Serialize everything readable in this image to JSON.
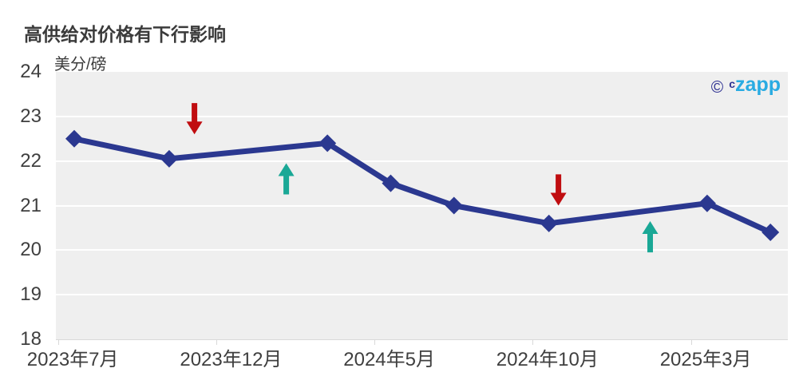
{
  "watermark": {
    "copyright_symbol": "©",
    "prefix": "c",
    "brand": "zapp"
  },
  "colors": {
    "line": "#2B3890",
    "marker": "#2B3890",
    "arrow_down": "#C00D10",
    "arrow_up": "#1AA896",
    "plot_bg": "#EFEFEF",
    "gridline": "#FFFFFF",
    "axis_text": "#3F3F3F",
    "axis_line": "#D9D9D9",
    "title_text": "#3B3B3B",
    "logo_navy": "#2E3192",
    "logo_blue": "#29ABE2"
  },
  "chart_data": {
    "type": "line",
    "title": "高供给对价格有下行影响",
    "ylabel": "美分/磅",
    "ylim": [
      18,
      24
    ],
    "y_ticks": [
      24,
      23,
      22,
      21,
      20,
      19,
      18
    ],
    "grid": "horizontal-white-on-gray",
    "legend": "none",
    "x_month_base": "2023-01",
    "x_domain_months": [
      5.92,
      29.05
    ],
    "x_ticks": [
      {
        "label": "2023年7月",
        "month": 6
      },
      {
        "label": "2023年12月",
        "month": 11
      },
      {
        "label": "2024年5月",
        "month": 16
      },
      {
        "label": "2024年10月",
        "month": 21
      },
      {
        "label": "2025年3月",
        "month": 26
      }
    ],
    "series": [
      {
        "color": "#2B3890",
        "marker": "diamond",
        "points": [
          {
            "month": 6.5,
            "value": 22.5
          },
          {
            "month": 9.5,
            "value": 22.05
          },
          {
            "month": 14.5,
            "value": 22.4
          },
          {
            "month": 16.5,
            "value": 21.5
          },
          {
            "month": 18.5,
            "value": 21.0
          },
          {
            "month": 21.5,
            "value": 20.6
          },
          {
            "month": 26.5,
            "value": 21.05
          },
          {
            "month": 28.5,
            "value": 20.4
          }
        ]
      }
    ],
    "annotations": [
      {
        "type": "arrow",
        "direction": "down",
        "color": "#C00D10",
        "month": 10.3,
        "value_from": 23.3,
        "value_to": 22.6
      },
      {
        "type": "arrow",
        "direction": "up",
        "color": "#1AA896",
        "month": 13.2,
        "value_from": 21.25,
        "value_to": 21.95
      },
      {
        "type": "arrow",
        "direction": "down",
        "color": "#C00D10",
        "month": 21.8,
        "value_from": 21.7,
        "value_to": 21.0
      },
      {
        "type": "arrow",
        "direction": "up",
        "color": "#1AA896",
        "month": 24.7,
        "value_from": 19.95,
        "value_to": 20.65
      }
    ]
  }
}
